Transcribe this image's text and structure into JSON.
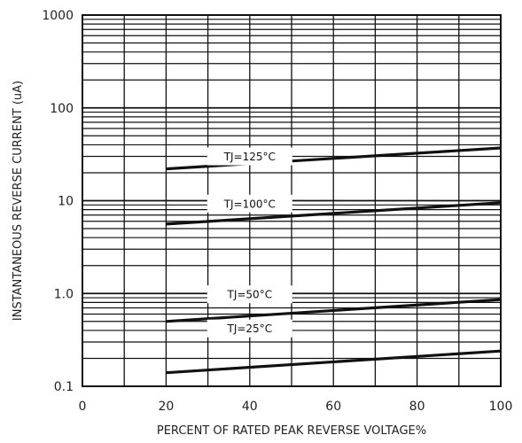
{
  "chart_data": {
    "type": "line",
    "title": "",
    "xlabel": "PERCENT OF RATED PEAK REVERSE VOLTAGE%",
    "ylabel": "INSTANTANEOUS REVERSE CURRENT    (uA)",
    "xlim": [
      0,
      100
    ],
    "ylim": [
      0.1,
      1000
    ],
    "yscale": "log",
    "grid": true,
    "legend": "none",
    "x_ticks": [
      0,
      20,
      40,
      60,
      80,
      100
    ],
    "x_tick_labels": [
      "0",
      "20",
      "40",
      "60",
      "80",
      "100"
    ],
    "y_ticks": [
      0.1,
      1,
      10,
      100,
      1000
    ],
    "y_tick_labels": [
      "0.1",
      "1.0",
      "10",
      "100",
      "1000"
    ],
    "series": [
      {
        "name": "TJ=125°C",
        "x": [
          20,
          100
        ],
        "y": [
          22,
          37
        ],
        "label_at": [
          40,
          30
        ],
        "label_text": "TJ=125°C"
      },
      {
        "name": "TJ=100°C",
        "x": [
          20,
          100
        ],
        "y": [
          5.6,
          9.5
        ],
        "label_at": [
          40,
          9.3
        ],
        "label_text": "TJ=100°C"
      },
      {
        "name": "TJ=50°C",
        "x": [
          20,
          100
        ],
        "y": [
          0.5,
          0.86
        ],
        "label_at": [
          40,
          0.98
        ],
        "label_text": "TJ=50°C"
      },
      {
        "name": "TJ=25°C",
        "x": [
          20,
          100
        ],
        "y": [
          0.14,
          0.24
        ],
        "label_at": [
          40,
          0.42
        ],
        "label_text": "TJ=25°C"
      }
    ],
    "line_color": "#111111",
    "grid_color": "#111111"
  }
}
